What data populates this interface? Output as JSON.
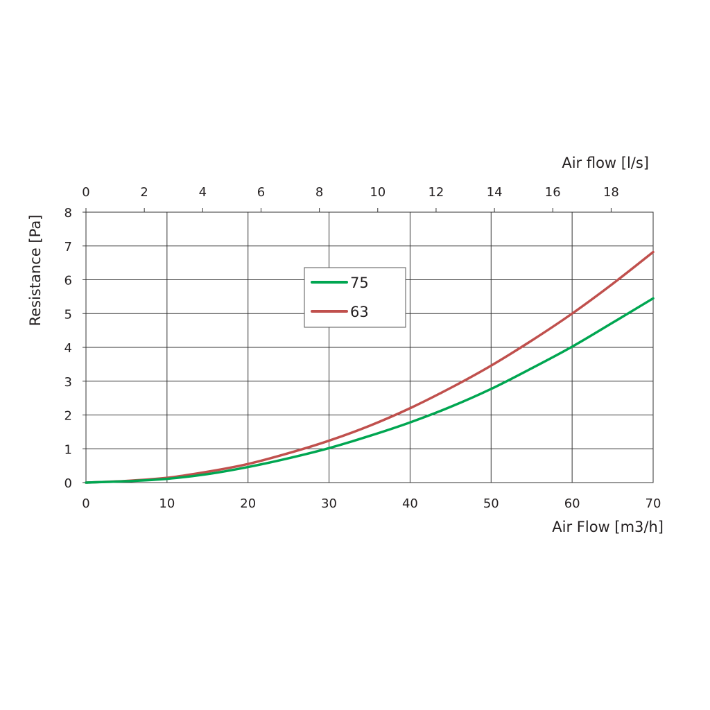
{
  "chart_data": {
    "type": "line",
    "xlabel": "Air Flow [m3/h]",
    "x2label": "Air flow [l/s]",
    "ylabel": "Resistance [Pa]",
    "xlim": [
      0,
      70
    ],
    "x2lim": [
      0,
      19.44
    ],
    "ylim": [
      0,
      8
    ],
    "x_ticks": [
      "0",
      "10",
      "20",
      "30",
      "40",
      "50",
      "60",
      "70"
    ],
    "x2_ticks": [
      "0",
      "2",
      "4",
      "6",
      "8",
      "10",
      "12",
      "14",
      "16",
      "18"
    ],
    "y_ticks": [
      "0",
      "1",
      "2",
      "3",
      "4",
      "5",
      "6",
      "7",
      "8"
    ],
    "grid": true,
    "legend_position": "upper-center",
    "series": [
      {
        "name": "75",
        "color": "#00a651",
        "points": [
          [
            0,
            0
          ],
          [
            5,
            0.04
          ],
          [
            10,
            0.11
          ],
          [
            15,
            0.25
          ],
          [
            20,
            0.46
          ],
          [
            25,
            0.72
          ],
          [
            30,
            1.02
          ],
          [
            35,
            1.38
          ],
          [
            40,
            1.78
          ],
          [
            45,
            2.24
          ],
          [
            50,
            2.77
          ],
          [
            55,
            3.38
          ],
          [
            60,
            4.02
          ],
          [
            65,
            4.73
          ],
          [
            70,
            5.45
          ]
        ]
      },
      {
        "name": "63",
        "color": "#c0504d",
        "points": [
          [
            0,
            0
          ],
          [
            5,
            0.05
          ],
          [
            10,
            0.14
          ],
          [
            15,
            0.32
          ],
          [
            20,
            0.55
          ],
          [
            25,
            0.87
          ],
          [
            30,
            1.24
          ],
          [
            35,
            1.68
          ],
          [
            40,
            2.2
          ],
          [
            45,
            2.8
          ],
          [
            50,
            3.46
          ],
          [
            55,
            4.2
          ],
          [
            60,
            5.0
          ],
          [
            65,
            5.88
          ],
          [
            70,
            6.82
          ]
        ]
      }
    ]
  }
}
